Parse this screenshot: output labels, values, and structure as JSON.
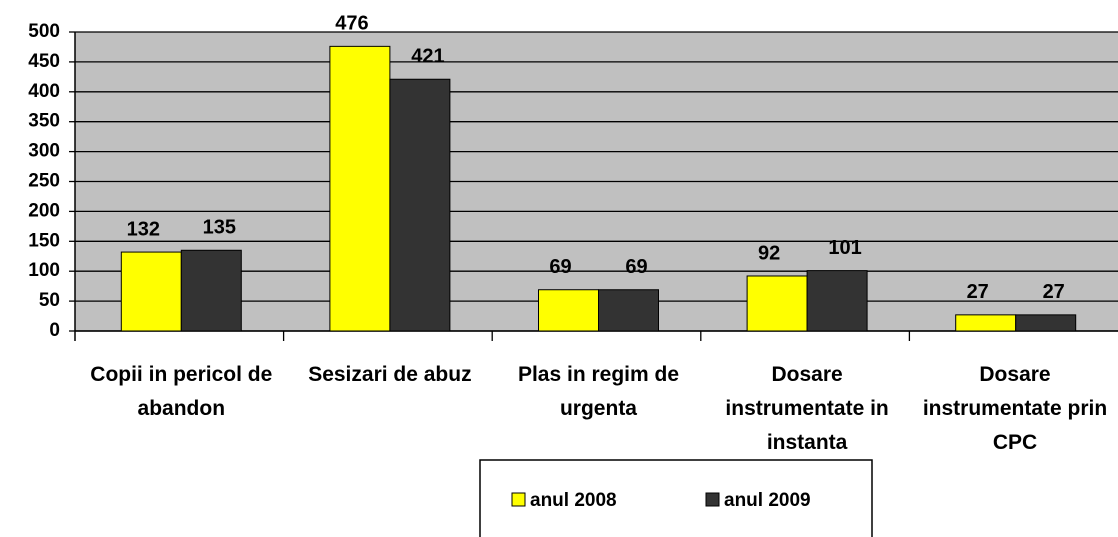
{
  "chart_data": {
    "type": "bar",
    "categories": [
      "Copii in pericol de abandon",
      "Sesizari de abuz",
      "Plas in regim de urgenta",
      "Dosare instrumentate in instanta",
      "Dosare instrumentate prin CPC"
    ],
    "series": [
      {
        "name": "anul 2008",
        "color": "#ffff00",
        "values": [
          132,
          476,
          69,
          92,
          27
        ]
      },
      {
        "name": "anul 2009",
        "color": "#333333",
        "values": [
          135,
          421,
          69,
          101,
          27
        ]
      }
    ],
    "ylim": [
      0,
      500
    ],
    "yticks": [
      0,
      50,
      100,
      150,
      200,
      250,
      300,
      350,
      400,
      450,
      500
    ],
    "grid": true,
    "legend": "bottom"
  }
}
